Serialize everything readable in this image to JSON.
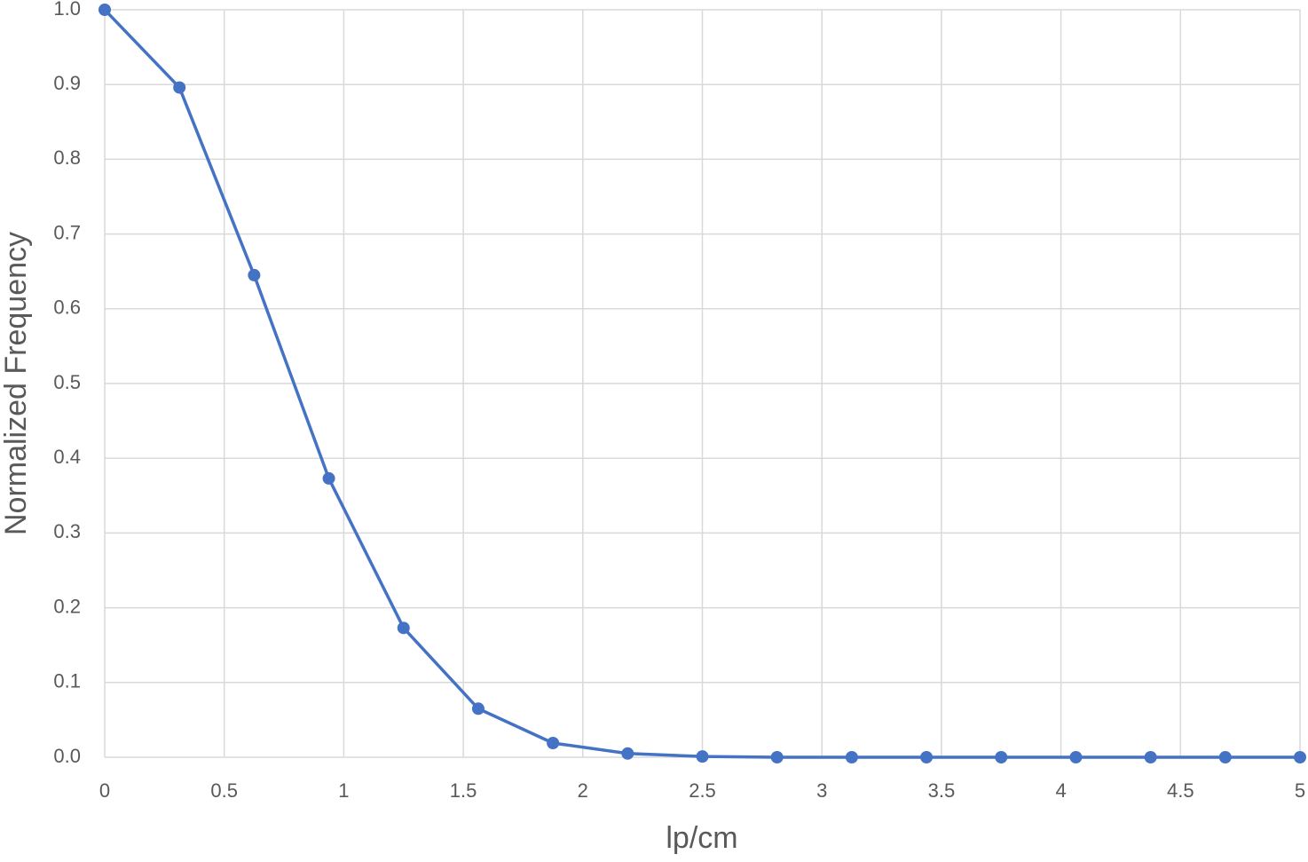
{
  "chart_data": {
    "type": "line",
    "x_label": "lp/cm",
    "y_label": "Normalized Frequency",
    "series": [
      {
        "name": "Normalized Frequency",
        "color": "#4472c4",
        "x": [
          0,
          0.3125,
          0.625,
          0.9375,
          1.25,
          1.5625,
          1.875,
          2.1875,
          2.5,
          2.8125,
          3.125,
          3.4375,
          3.75,
          4.0625,
          4.375,
          4.6875,
          5
        ],
        "values": [
          1.0,
          0.896,
          0.645,
          0.373,
          0.173,
          0.065,
          0.019,
          0.005,
          0.001,
          0,
          0,
          0,
          0,
          0,
          0,
          0,
          0
        ]
      }
    ],
    "xlim": [
      0,
      5
    ],
    "xticks": [
      0,
      0.5,
      1,
      1.5,
      2,
      2.5,
      3,
      3.5,
      4,
      4.5,
      5
    ],
    "ylim": [
      0,
      1
    ],
    "yticks": [
      {
        "value": 0,
        "label": "0.0"
      },
      0.1,
      0.2,
      0.3,
      0.4,
      0.5,
      0.6,
      0.7,
      0.8,
      0.9,
      {
        "value": 1,
        "label": "1.0"
      }
    ],
    "grid": true
  }
}
